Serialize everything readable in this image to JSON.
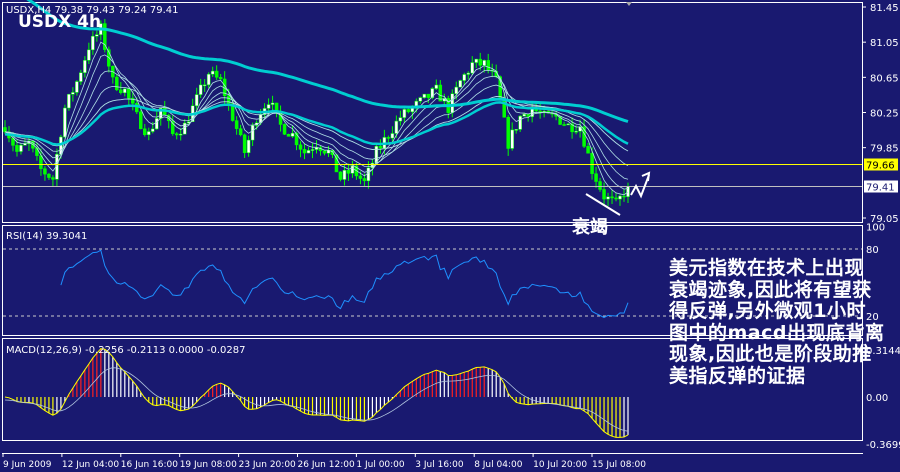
{
  "chart_data": {
    "type": "candlestick",
    "symbol_header": "USDX,H4  79.38 79.43 79.24 79.41",
    "title": "USDX  4h",
    "timeframe": "H4",
    "ohlc_last": {
      "open": 79.38,
      "high": 79.43,
      "low": 79.24,
      "close": 79.41
    },
    "close_12h": [
      80.1,
      79.8,
      79.9,
      79.6,
      79.5,
      80.3,
      80.6,
      81.0,
      81.2,
      80.6,
      80.5,
      80.2,
      80.0,
      80.3,
      80.0,
      80.1,
      80.4,
      80.7,
      80.6,
      80.2,
      79.8,
      80.2,
      80.4,
      80.1,
      80.0,
      79.8,
      79.9,
      79.8,
      79.5,
      79.6,
      79.45,
      79.8,
      80.0,
      80.2,
      80.3,
      80.4,
      80.5,
      80.3,
      80.6,
      80.8,
      80.8,
      80.6,
      79.9,
      80.2,
      80.3,
      80.2,
      80.2,
      80.1,
      80.1,
      79.6,
      79.3,
      79.2,
      79.41
    ],
    "price_axis": {
      "ylim": [
        79.05,
        81.45
      ],
      "ticks": [
        "81.45",
        "81.05",
        "80.65",
        "80.25",
        "79.85",
        "79.05"
      ]
    },
    "levels": [
      {
        "label": "79.66",
        "value": 79.66,
        "color": "#ffff00"
      },
      {
        "label": "79.41",
        "value": 79.41,
        "color": "#c0c0c0"
      }
    ],
    "x_ticks": [
      "9 Jun 2009",
      "12 Jun 04:00",
      "16 Jun 16:00",
      "19 Jun 08:00",
      "23 Jun 20:00",
      "26 Jun 12:00",
      "1 Jul 00:00",
      "3 Jul 16:00",
      "8 Jul 04:00",
      "10 Jul 20:00",
      "15 Jul 08:00"
    ],
    "annotation": "衰竭",
    "rsi": {
      "label": "RSI(14) 39.3041",
      "period": 14,
      "ylim": [
        0,
        100
      ],
      "ticks": [
        "100",
        "80",
        "20"
      ],
      "levels": [
        80,
        20
      ],
      "color": "#1e90ff"
    },
    "macd": {
      "label": "MACD(12,26,9) -0.2256 -0.2113 0.0000 -0.0287",
      "fast": 12,
      "slow": 26,
      "signal": 9,
      "ylim": [
        -0.3699,
        0.3144
      ],
      "ticks": [
        "0.3144",
        "0.00",
        "-0.3699"
      ]
    },
    "colors": {
      "background": "#191970",
      "bull": "#ffffff",
      "bear": "#00ff00",
      "wick": "#00ff00",
      "ma_long": "#00ced1",
      "ma_thin": "#b0e0e6"
    }
  },
  "note_lines": [
    "美元指数在技术上出现",
    "衰竭迹象,因此将有望获",
    "得反弹,另外微观1小时",
    "图中的macd出现底背离",
    "现象,因此也是阶段助推",
    "美指反弹的证据"
  ]
}
